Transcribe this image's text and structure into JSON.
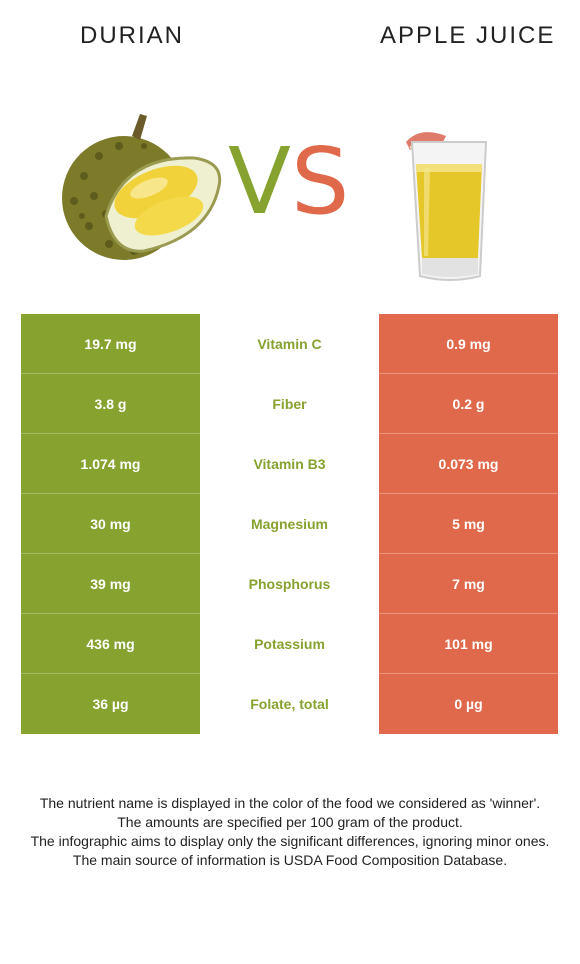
{
  "header": {
    "left_title": "DURIAN",
    "right_title": "APPLE JUICE"
  },
  "vs": {
    "v": "V",
    "s": "S"
  },
  "colors": {
    "winner_left": "#86a22f",
    "right": "#e0694b"
  },
  "rows": [
    {
      "left": "19.7 mg",
      "nutrient": "Vitamin C",
      "right": "0.9 mg"
    },
    {
      "left": "3.8 g",
      "nutrient": "Fiber",
      "right": "0.2 g"
    },
    {
      "left": "1.074 mg",
      "nutrient": "Vitamin B3",
      "right": "0.073 mg"
    },
    {
      "left": "30 mg",
      "nutrient": "Magnesium",
      "right": "5 mg"
    },
    {
      "left": "39 mg",
      "nutrient": "Phosphorus",
      "right": "7 mg"
    },
    {
      "left": "436 mg",
      "nutrient": "Potassium",
      "right": "101 mg"
    },
    {
      "left": "36 µg",
      "nutrient": "Folate, total",
      "right": "0 µg"
    }
  ],
  "footer": [
    "The nutrient name is displayed in the color of the food we considered as 'winner'.",
    "The amounts are specified per 100 gram of the product.",
    "The infographic aims to display only the significant differences, ignoring minor ones.",
    "The main source of information is USDA Food Composition Database."
  ]
}
